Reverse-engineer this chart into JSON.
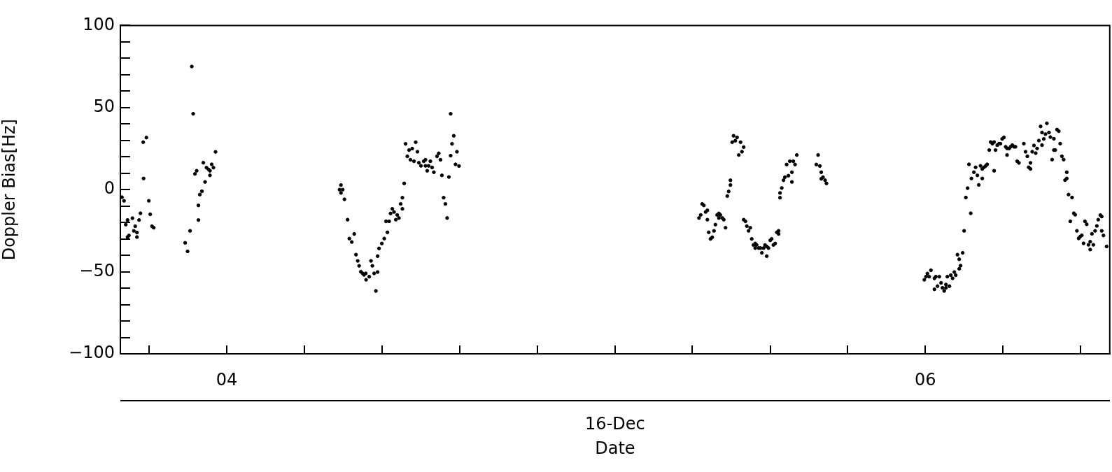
{
  "chart_data": {
    "type": "scatter",
    "xlabel": "Date",
    "ylabel": "Doppler Bias[Hz]",
    "annotations": [
      "16-Dec"
    ],
    "color": "#000000",
    "marker": "circle",
    "grid": false,
    "legend": false,
    "xlim": [
      3.6955,
      6.528
    ],
    "ylim": [
      -100,
      100
    ],
    "xticks": [
      {
        "value": 3.778,
        "label": null
      },
      {
        "value": 4,
        "label": "04"
      },
      {
        "value": 4.222,
        "label": null
      },
      {
        "value": 4.444,
        "label": null
      },
      {
        "value": 4.667,
        "label": null
      },
      {
        "value": 4.889,
        "label": null
      },
      {
        "value": 5.111,
        "label": null
      },
      {
        "value": 5.333,
        "label": null
      },
      {
        "value": 5.556,
        "label": null
      },
      {
        "value": 5.778,
        "label": null
      },
      {
        "value": 6,
        "label": "06"
      },
      {
        "value": 6.222,
        "label": null
      },
      {
        "value": 6.444,
        "label": null
      }
    ],
    "yticks": [
      -100,
      {
        "value": -90,
        "label": null
      },
      {
        "value": -80,
        "label": null
      },
      {
        "value": -70,
        "label": null
      },
      {
        "value": -60,
        "label": null
      },
      -50,
      {
        "value": -40,
        "label": null
      },
      {
        "value": -30,
        "label": null
      },
      {
        "value": -20,
        "label": null
      },
      {
        "value": -10,
        "label": null
      },
      0,
      {
        "value": 10,
        "label": null
      },
      {
        "value": 20,
        "label": null
      },
      {
        "value": 30,
        "label": null
      },
      {
        "value": 40,
        "label": null
      },
      50,
      {
        "value": 60,
        "label": null
      },
      {
        "value": 70,
        "label": null
      },
      {
        "value": 80,
        "label": null
      },
      {
        "value": 90,
        "label": null
      },
      100
    ],
    "x": [
      3.7,
      3.706,
      3.711,
      3.716,
      3.716,
      3.72,
      3.73,
      3.734,
      3.738,
      3.743,
      3.743,
      3.749,
      3.753,
      3.761,
      3.762,
      3.77,
      3.777,
      3.781,
      3.786,
      3.791,
      3.881,
      3.888,
      3.895,
      3.9,
      3.904,
      3.909,
      3.914,
      3.919,
      3.919,
      3.923,
      3.929,
      3.933,
      3.938,
      3.942,
      3.948,
      3.952,
      3.952,
      3.957,
      3.962,
      3.968,
      4.327,
      4.323,
      4.332,
      4.327,
      4.337,
      4.346,
      4.365,
      4.351,
      4.358,
      4.37,
      4.375,
      4.379,
      4.384,
      4.389,
      4.393,
      4.398,
      4.399,
      4.408,
      4.413,
      4.417,
      4.422,
      4.427,
      4.432,
      4.432,
      4.436,
      4.444,
      4.451,
      4.46,
      4.456,
      4.465,
      4.469,
      4.474,
      4.479,
      4.484,
      4.488,
      4.493,
      4.498,
      4.503,
      4.503,
      4.508,
      4.512,
      4.517,
      4.522,
      4.526,
      4.531,
      4.536,
      4.541,
      4.546,
      4.55,
      4.556,
      4.564,
      4.569,
      4.569,
      4.574,
      4.578,
      4.583,
      4.588,
      4.593,
      4.602,
      4.607,
      4.612,
      4.616,
      4.621,
      4.626,
      4.631,
      4.636,
      4.641,
      4.641,
      4.645,
      4.65,
      4.655,
      4.659,
      4.665,
      5.352,
      5.357,
      5.361,
      5.366,
      5.371,
      5.376,
      5.376,
      5.38,
      5.385,
      5.39,
      5.395,
      5.399,
      5.404,
      5.409,
      5.409,
      5.413,
      5.419,
      5.423,
      5.428,
      5.433,
      5.437,
      5.442,
      5.442,
      5.447,
      5.451,
      5.456,
      5.461,
      5.466,
      5.471,
      5.475,
      5.48,
      5.48,
      5.485,
      5.489,
      5.494,
      5.499,
      5.503,
      5.508,
      5.513,
      5.513,
      5.517,
      5.523,
      5.528,
      5.532,
      5.537,
      5.541,
      5.546,
      5.546,
      5.551,
      5.556,
      5.56,
      5.565,
      5.57,
      5.575,
      5.58,
      5.58,
      5.584,
      5.584,
      5.589,
      5.594,
      5.598,
      5.603,
      5.608,
      5.612,
      5.618,
      5.618,
      5.622,
      5.627,
      5.632,
      5.688,
      5.693,
      5.698,
      5.702,
      5.702,
      5.707,
      5.713,
      5.717,
      5.997,
      6.002,
      6.006,
      6.011,
      6.016,
      6.026,
      6.026,
      6.03,
      6.035,
      6.04,
      6.045,
      6.049,
      6.054,
      6.059,
      6.059,
      6.063,
      6.069,
      6.073,
      6.078,
      6.083,
      6.087,
      6.092,
      6.097,
      6.097,
      6.101,
      6.107,
      6.111,
      6.116,
      6.121,
      6.125,
      6.13,
      6.132,
      6.139,
      6.144,
      6.149,
      6.153,
      6.158,
      6.163,
      6.163,
      6.168,
      6.173,
      6.177,
      6.183,
      6.187,
      6.192,
      6.197,
      6.197,
      6.201,
      6.206,
      6.211,
      6.215,
      6.22,
      6.225,
      6.23,
      6.234,
      6.234,
      6.24,
      6.244,
      6.249,
      6.254,
      6.258,
      6.263,
      6.268,
      6.282,
      6.287,
      6.292,
      6.296,
      6.301,
      6.301,
      6.306,
      6.311,
      6.316,
      6.32,
      6.325,
      6.33,
      6.334,
      6.334,
      6.339,
      6.344,
      6.348,
      6.354,
      6.358,
      6.363,
      6.368,
      6.368,
      6.372,
      6.377,
      6.382,
      6.386,
      6.391,
      6.396,
      6.4,
      6.405,
      6.405,
      6.41,
      6.415,
      6.42,
      6.425,
      6.429,
      6.434,
      6.439,
      6.443,
      6.448,
      6.453,
      6.457,
      6.462,
      6.467,
      6.472,
      6.472,
      6.477,
      6.481,
      6.486,
      6.491,
      6.495,
      6.501,
      6.505,
      6.505,
      6.51,
      6.519
    ],
    "values": [
      -4.6,
      -6.8,
      -21.3,
      -18.5,
      -28.9,
      -27.9,
      -17.4,
      -25.1,
      -22.3,
      -26.1,
      -28.9,
      -18.5,
      -14.4,
      28.9,
      6.8,
      31.7,
      -6.8,
      -15.0,
      -22.3,
      -23.2,
      -32.4,
      -37.6,
      -25.1,
      75.0,
      46.2,
      9.6,
      11.5,
      -9.6,
      -18.5,
      -3.0,
      -1.0,
      16.4,
      4.7,
      13.4,
      12.3,
      11.5,
      8.7,
      15.4,
      13.4,
      23.0,
      2.8,
      0.0,
      0.0,
      -2.0,
      -5.9,
      -18.3,
      -27.0,
      -29.8,
      -31.9,
      -39.6,
      -43.4,
      -46.4,
      -50.0,
      -51.0,
      -51.9,
      -51.0,
      -54.9,
      -53.0,
      -43.4,
      -46.4,
      -51.0,
      -61.7,
      -50.2,
      -40.5,
      -35.8,
      -32.8,
      -29.8,
      -26.0,
      -19.3,
      -19.3,
      -14.5,
      -11.7,
      -13.6,
      -18.3,
      -15.4,
      -17.3,
      -8.7,
      -11.7,
      -4.9,
      3.8,
      27.9,
      20.3,
      24.1,
      18.2,
      25.0,
      17.3,
      28.9,
      23.1,
      16.4,
      14.5,
      17.3,
      18.2,
      14.5,
      11.5,
      14.5,
      17.3,
      13.5,
      10.6,
      20.3,
      22.1,
      18.2,
      8.7,
      -4.9,
      -8.7,
      -17.3,
      7.7,
      46.2,
      20.7,
      27.9,
      32.8,
      15.4,
      23.1,
      14.4,
      -17.3,
      -15.4,
      -8.7,
      -9.6,
      -13.6,
      -12.6,
      -18.3,
      -26.0,
      -30.0,
      -29.0,
      -25.1,
      -21.3,
      -15.4,
      -14.5,
      -17.3,
      -15.4,
      -17.3,
      -18.3,
      -23.2,
      -3.9,
      -1.1,
      5.7,
      2.8,
      28.9,
      32.8,
      29.8,
      31.8,
      21.1,
      28.9,
      23.1,
      25.9,
      -18.3,
      -19.3,
      -22.2,
      -25.1,
      -23.2,
      -30.0,
      -33.7,
      -32.8,
      -35.6,
      -33.7,
      -35.6,
      -35.6,
      -38.5,
      -35.6,
      -33.7,
      -34.6,
      -40.5,
      -35.6,
      -30.9,
      -30.0,
      -33.7,
      -32.8,
      -26.0,
      -25.1,
      -27.0,
      -4.9,
      -2.0,
      1.0,
      5.7,
      7.6,
      15.3,
      8.5,
      17.3,
      10.6,
      4.7,
      17.3,
      15.3,
      21.1,
      15.3,
      21.1,
      14.4,
      10.6,
      6.6,
      7.6,
      5.7,
      3.8,
      -54.9,
      -53.0,
      -51.1,
      -53.0,
      -49.1,
      -54.0,
      -60.7,
      -53.0,
      -58.8,
      -53.0,
      -56.8,
      -59.8,
      -61.7,
      -59.8,
      -57.8,
      -53.0,
      -58.8,
      -52.1,
      -54.0,
      -50.2,
      -52.1,
      -39.6,
      -48.2,
      -42.4,
      -46.3,
      -38.5,
      -25.1,
      -4.8,
      0.9,
      15.4,
      -14.4,
      6.8,
      10.6,
      13.6,
      8.7,
      2.9,
      14.5,
      12.6,
      6.8,
      13.6,
      14.5,
      15.4,
      24.1,
      29.0,
      28.0,
      29.0,
      11.5,
      24.1,
      27.1,
      28.0,
      28.0,
      30.9,
      31.8,
      26.1,
      25.1,
      21.1,
      25.1,
      26.1,
      27.1,
      26.1,
      26.1,
      17.3,
      16.3,
      28.0,
      23.1,
      20.3,
      13.6,
      12.6,
      16.3,
      23.1,
      26.9,
      22.2,
      25.1,
      29.9,
      38.5,
      34.8,
      27.1,
      30.9,
      33.8,
      40.4,
      34.8,
      32.0,
      18.3,
      31.0,
      24.1,
      24.1,
      36.6,
      35.6,
      28.0,
      20.3,
      18.3,
      5.8,
      6.8,
      10.6,
      -3.0,
      -19.3,
      -4.8,
      -14.4,
      -15.3,
      -25.1,
      -29.7,
      -28.7,
      -27.8,
      -32.7,
      -19.3,
      -21.1,
      -33.6,
      -31.7,
      -36.5,
      -26.9,
      -33.6,
      -25.1,
      -22.1,
      -18.3,
      -15.5,
      -16.4,
      -25.1,
      -27.9,
      -34.6
    ]
  }
}
